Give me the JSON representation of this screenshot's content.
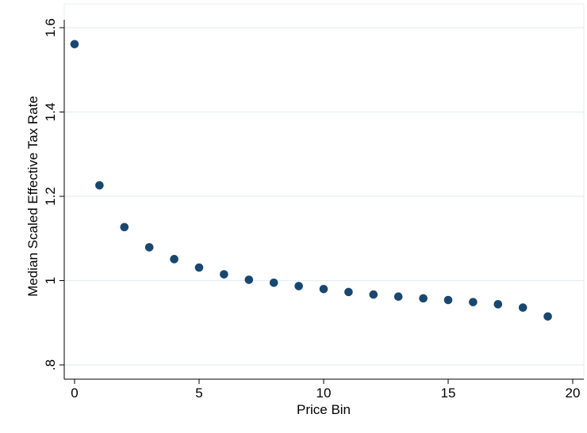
{
  "chart_data": {
    "type": "scatter",
    "title": "",
    "xlabel": "Price Bin",
    "ylabel": "Median Scaled Effective Tax Rate",
    "xlim": [
      0,
      20
    ],
    "ylim": [
      0.8,
      1.6
    ],
    "xticks": [
      0,
      5,
      10,
      15,
      20
    ],
    "xtick_labels": [
      "0",
      "5",
      "10",
      "15",
      "20"
    ],
    "yticks": [
      0.8,
      1.0,
      1.2,
      1.4,
      1.6
    ],
    "ytick_labels": [
      ".8",
      "1",
      "1.2",
      "1.4",
      "1.6"
    ],
    "grid": "horizontal",
    "legend": "none",
    "marker_color": "#1a476f",
    "grid_color": "#e5eef3",
    "series": [
      {
        "x": [
          0,
          1,
          2,
          3,
          4,
          5,
          6,
          7,
          8,
          9,
          10,
          11,
          12,
          13,
          14,
          15,
          16,
          17,
          18,
          19
        ],
        "y": [
          1.561,
          1.226,
          1.127,
          1.079,
          1.051,
          1.031,
          1.015,
          1.002,
          0.995,
          0.987,
          0.98,
          0.973,
          0.967,
          0.962,
          0.958,
          0.954,
          0.949,
          0.944,
          0.936,
          0.915
        ]
      }
    ]
  }
}
